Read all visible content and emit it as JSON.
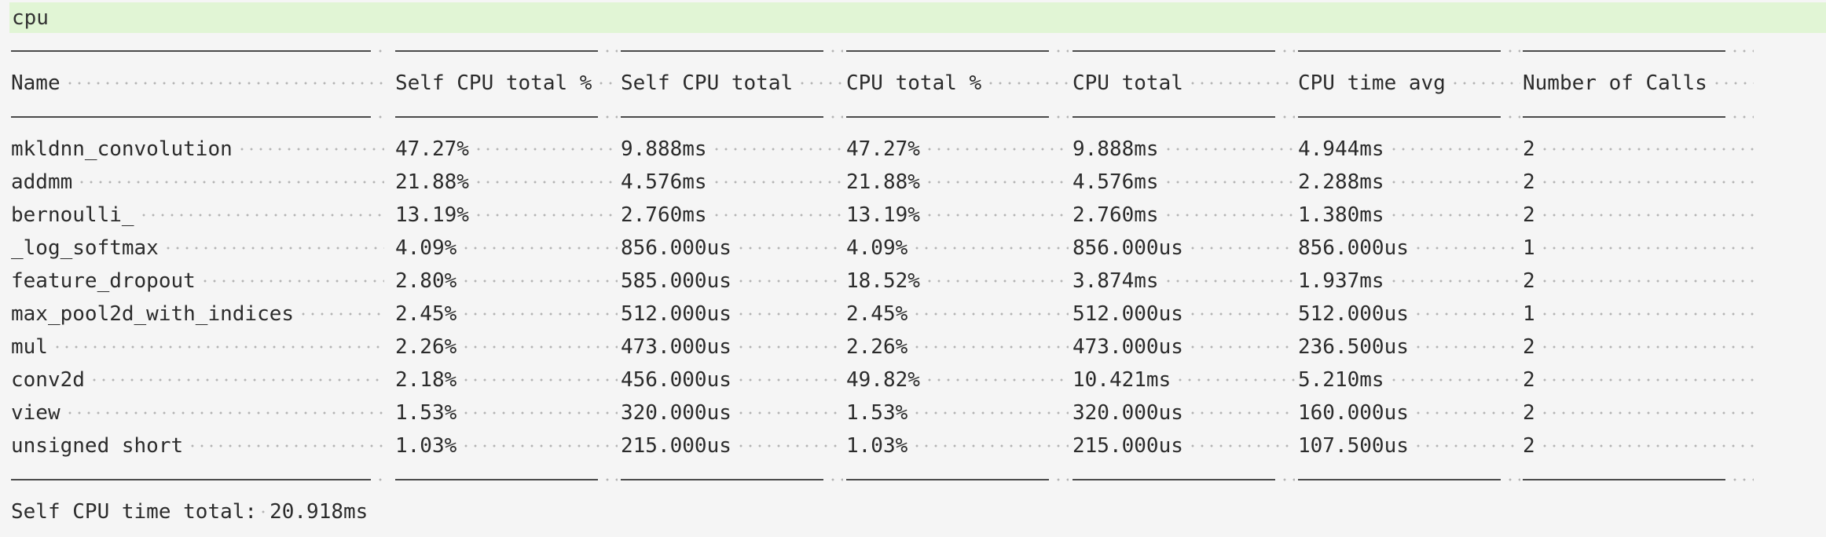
{
  "cell_label": "cpu",
  "table": {
    "columns": [
      "Name",
      "Self CPU total %",
      "Self CPU total",
      "CPU total %",
      "CPU total",
      "CPU time avg",
      "Number of Calls"
    ],
    "rows": [
      [
        "mkldnn_convolution",
        "47.27%",
        "9.888ms",
        "47.27%",
        "9.888ms",
        "4.944ms",
        "2"
      ],
      [
        "addmm",
        "21.88%",
        "4.576ms",
        "21.88%",
        "4.576ms",
        "2.288ms",
        "2"
      ],
      [
        "bernoulli_",
        "13.19%",
        "2.760ms",
        "13.19%",
        "2.760ms",
        "1.380ms",
        "2"
      ],
      [
        "_log_softmax",
        "4.09%",
        "856.000us",
        "4.09%",
        "856.000us",
        "856.000us",
        "1"
      ],
      [
        "feature_dropout",
        "2.80%",
        "585.000us",
        "18.52%",
        "3.874ms",
        "1.937ms",
        "2"
      ],
      [
        "max_pool2d_with_indices",
        "2.45%",
        "512.000us",
        "2.45%",
        "512.000us",
        "512.000us",
        "1"
      ],
      [
        "mul",
        "2.26%",
        "473.000us",
        "2.26%",
        "473.000us",
        "236.500us",
        "2"
      ],
      [
        "conv2d",
        "2.18%",
        "456.000us",
        "49.82%",
        "10.421ms",
        "5.210ms",
        "2"
      ],
      [
        "view",
        "1.53%",
        "320.000us",
        "1.53%",
        "320.000us",
        "160.000us",
        "2"
      ],
      [
        "unsigned short",
        "1.03%",
        "215.000us",
        "1.03%",
        "215.000us",
        "107.500us",
        "2"
      ]
    ]
  },
  "footer": {
    "label": "Self CPU time total:",
    "value": "20.918ms"
  }
}
